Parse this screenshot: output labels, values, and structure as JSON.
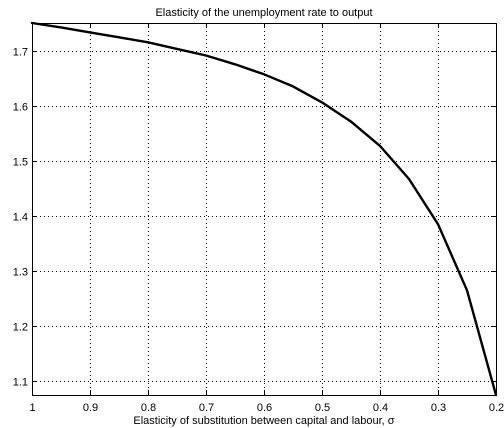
{
  "chart_data": {
    "type": "line",
    "title": "Elasticity of the unemployment rate to output",
    "xlabel": "Elasticity of substitution between capital and labour, σ",
    "ylabel": "",
    "x_reversed": true,
    "xlim": [
      0.2,
      1.0
    ],
    "ylim": [
      1.075,
      1.75
    ],
    "grid": true,
    "grid_style": "dotted",
    "x_ticks": [
      1,
      0.9,
      0.8,
      0.7,
      0.6,
      0.5,
      0.4,
      0.3,
      0.2
    ],
    "x_tick_labels": [
      "1",
      "0.9",
      "0.8",
      "0.7",
      "0.6",
      "0.5",
      "0.4",
      "0.3",
      "0.2"
    ],
    "y_ticks": [
      1.1,
      1.2,
      1.3,
      1.4,
      1.5,
      1.6,
      1.7
    ],
    "y_tick_labels": [
      "1.1",
      "1.2",
      "1.3",
      "1.4",
      "1.5",
      "1.6",
      "1.7"
    ],
    "line_color": "#000000",
    "series": [
      {
        "x": [
          1.0,
          0.95,
          0.9,
          0.85,
          0.8,
          0.75,
          0.7,
          0.65,
          0.6,
          0.55,
          0.5,
          0.45,
          0.4,
          0.35,
          0.3,
          0.25,
          0.2
        ],
        "values": [
          1.75,
          1.742,
          1.733,
          1.724,
          1.715,
          1.703,
          1.691,
          1.675,
          1.657,
          1.635,
          1.606,
          1.571,
          1.527,
          1.467,
          1.385,
          1.265,
          1.075
        ]
      }
    ]
  }
}
